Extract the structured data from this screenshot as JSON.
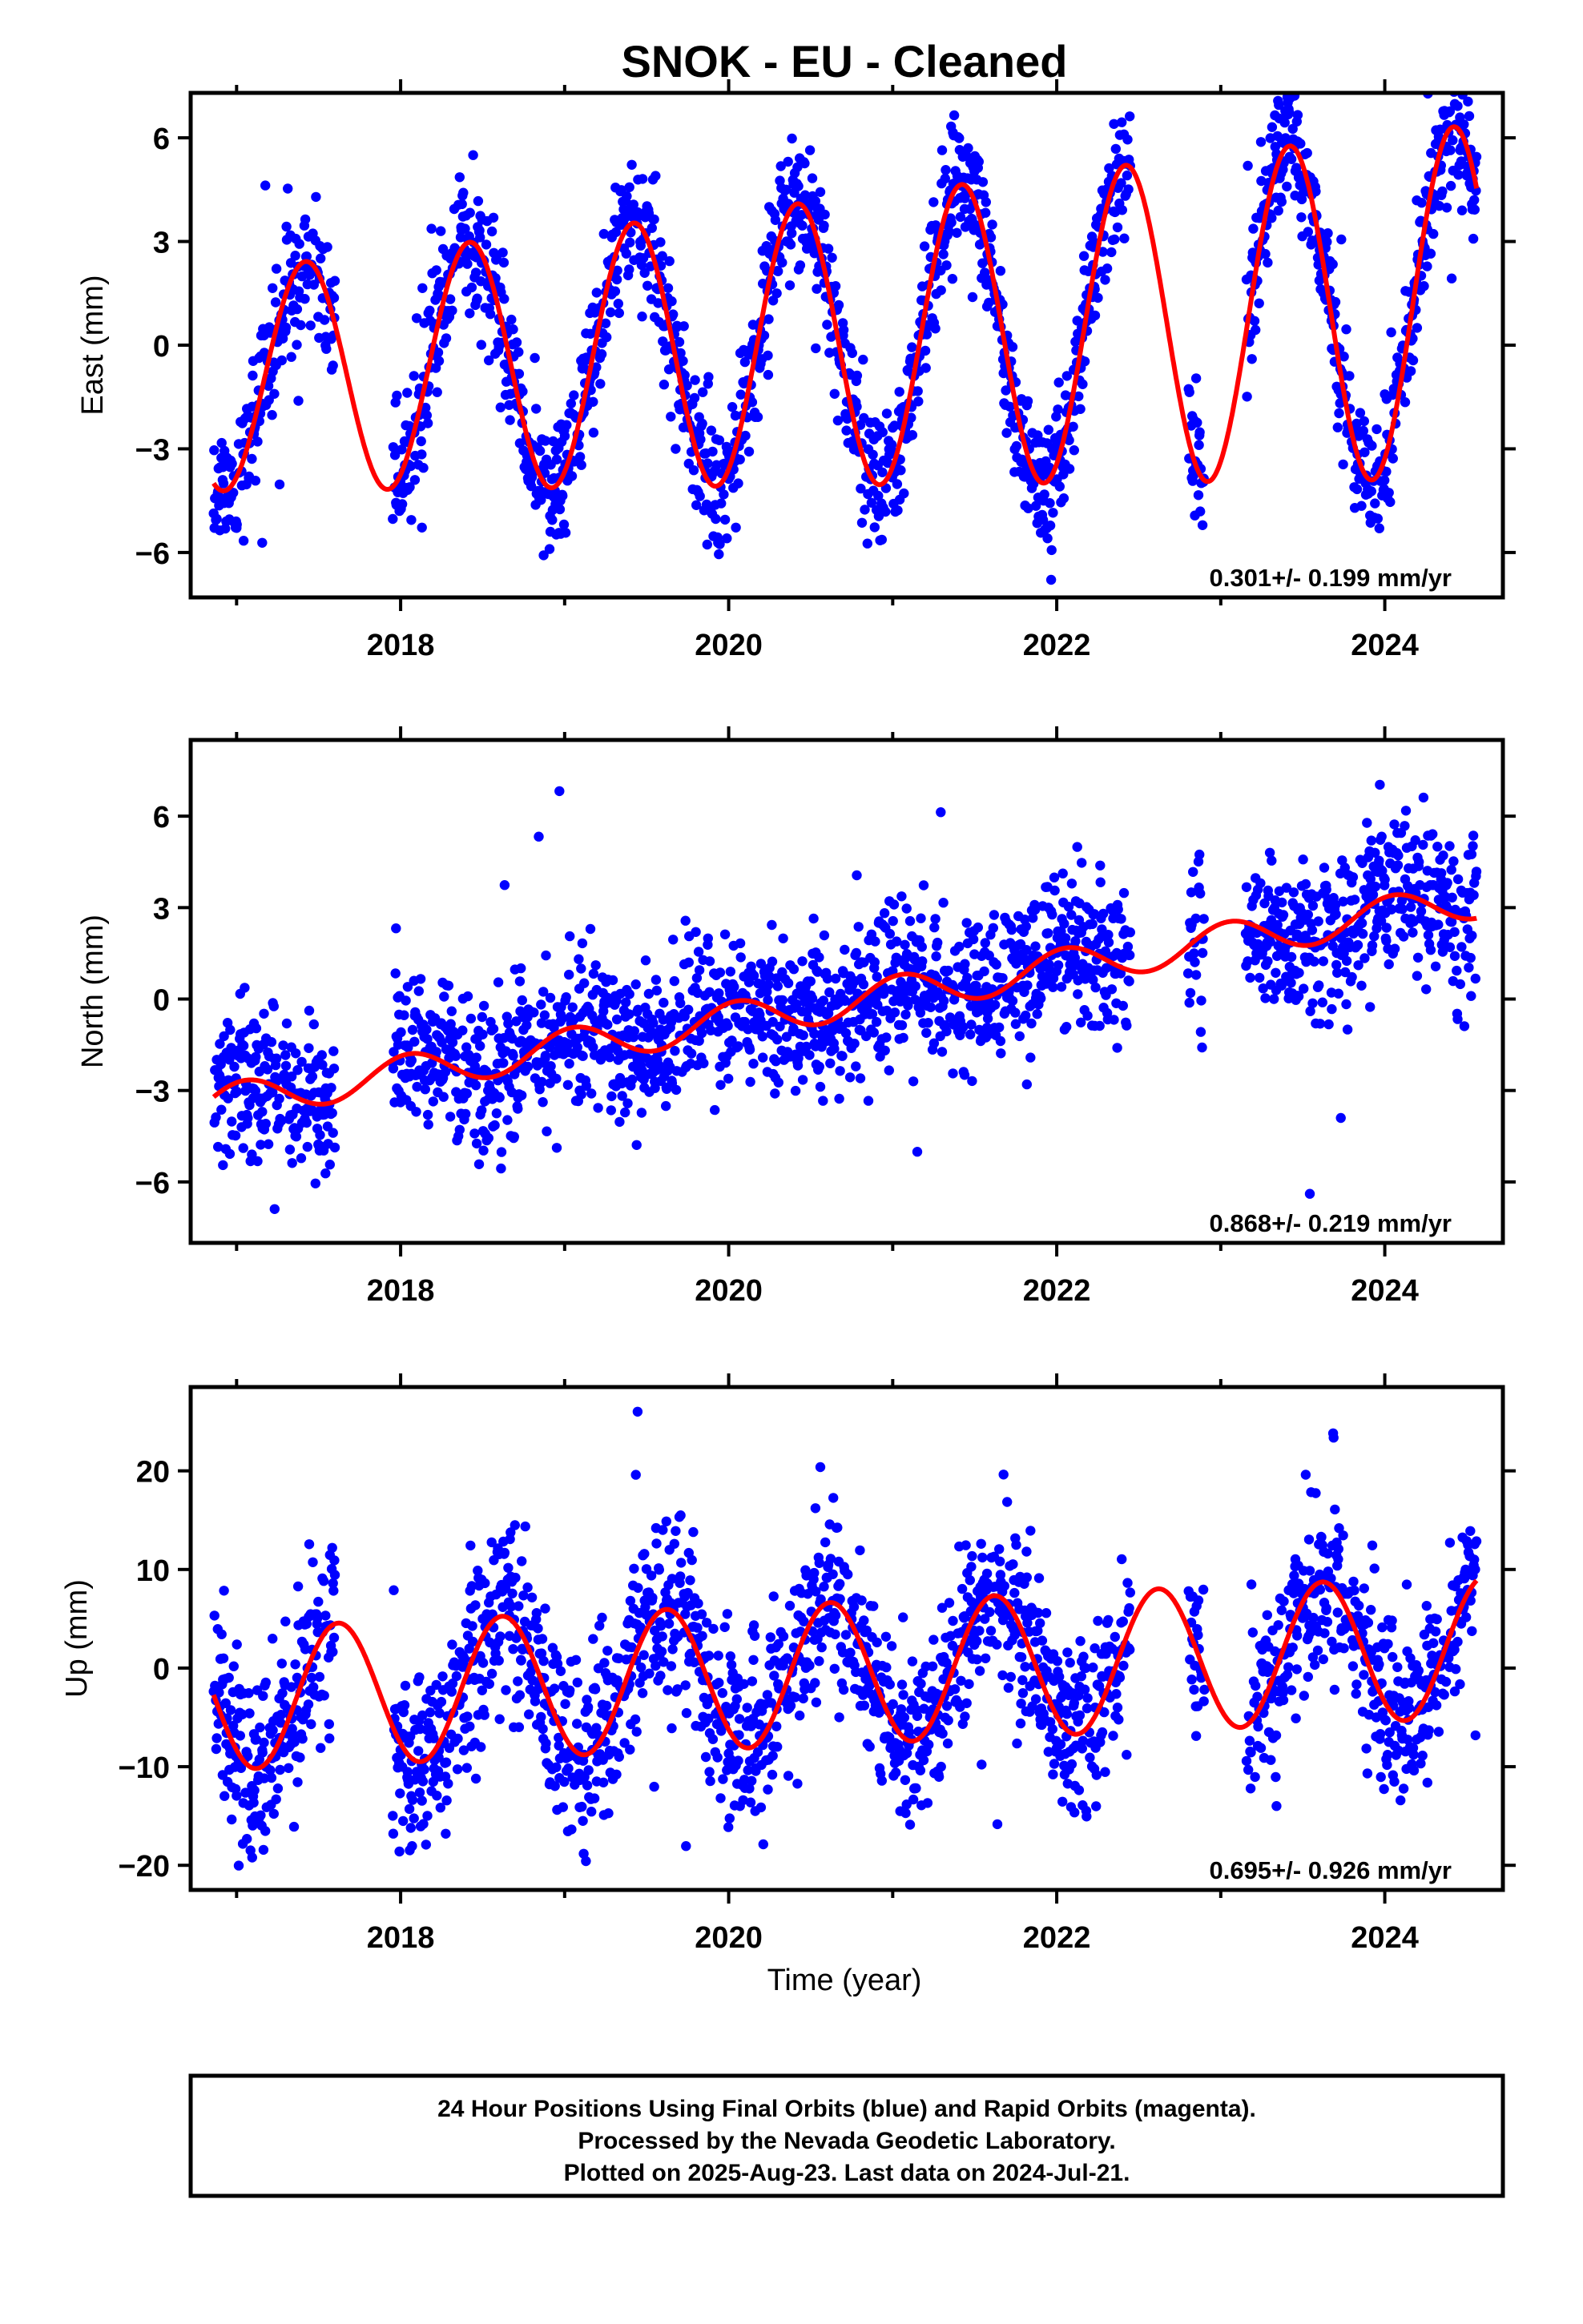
{
  "title": "SNOK  - EU - Cleaned",
  "x_axis_label": "Time (year)",
  "colors": {
    "final_orbits": "#0000ff",
    "model_fit": "#ff0000",
    "frame": "#000000"
  },
  "chart_data": [
    {
      "type": "scatter",
      "component": "East",
      "ylabel": "East (mm)",
      "xlim": [
        2016.72,
        2024.72
      ],
      "ylim": [
        -7.3,
        7.3
      ],
      "xticks": [
        2018,
        2020,
        2022,
        2024
      ],
      "yticks": [
        -6,
        -3,
        0,
        3,
        6
      ],
      "ytick_labels": [
        "−6",
        "−3",
        "0",
        "3",
        "6"
      ],
      "rate_label": "0.301+/- 0.199 mm/yr",
      "series": [
        {
          "values": [],
          "model": {
            "slope": 0.301,
            "offset": 0.1,
            "t0": 2020.7,
            "amplitude": 3.2,
            "phase_year": 2017.42,
            "amp_growth": 0.08
          },
          "scatter": {
            "sigma": 1.0,
            "seed": 11
          }
        }
      ],
      "data_gaps": [
        [
          2017.6,
          2017.95
        ],
        [
          2022.45,
          2022.8
        ],
        [
          2022.9,
          2023.15
        ]
      ]
    },
    {
      "type": "scatter",
      "component": "North",
      "ylabel": "North (mm)",
      "xlim": [
        2016.72,
        2024.72
      ],
      "ylim": [
        -8.0,
        8.5
      ],
      "xticks": [
        2018,
        2020,
        2022,
        2024
      ],
      "yticks": [
        -6,
        -3,
        0,
        3,
        6
      ],
      "ytick_labels": [
        "−6",
        "−3",
        "0",
        "3",
        "6"
      ],
      "rate_label": "0.868+/- 0.219 mm/yr",
      "series": [
        {
          "values": [],
          "model": {
            "slope": 0.868,
            "offset": -0.1,
            "t0": 2020.7,
            "amplitude": 0.6,
            "phase_year": 2017.05,
            "amp_growth": 0.0
          },
          "scatter": {
            "sigma": 1.25,
            "seed": 23
          }
        }
      ],
      "data_gaps": [
        [
          2017.6,
          2017.95
        ],
        [
          2022.45,
          2022.8
        ],
        [
          2022.9,
          2023.15
        ]
      ]
    },
    {
      "type": "scatter",
      "component": "Up",
      "ylabel": "Up (mm)",
      "xlim": [
        2016.72,
        2024.72
      ],
      "ylim": [
        -22.5,
        28.5
      ],
      "xticks": [
        2018,
        2020,
        2022,
        2024
      ],
      "yticks": [
        -20,
        -10,
        0,
        10,
        20
      ],
      "ytick_labels": [
        "−20",
        "−10",
        "0",
        "10",
        "20"
      ],
      "rate_label": "0.695+/- 0.926 mm/yr",
      "series": [
        {
          "values": [],
          "model": {
            "slope": 0.695,
            "offset": -0.5,
            "t0": 2020.7,
            "amplitude": 7.2,
            "phase_year": 2017.62,
            "amp_growth": 0.0
          },
          "scatter": {
            "sigma": 4.6,
            "seed": 37
          }
        }
      ],
      "data_gaps": [
        [
          2017.6,
          2017.95
        ],
        [
          2022.45,
          2022.8
        ],
        [
          2022.9,
          2023.15
        ]
      ]
    }
  ],
  "footer": {
    "line1": "24 Hour Positions Using Final Orbits (blue) and Rapid Orbits (magenta).",
    "line2": "Processed by the Nevada Geodetic Laboratory.",
    "line3": "Plotted on 2025-Aug-23. Last data on 2024-Jul-21."
  }
}
